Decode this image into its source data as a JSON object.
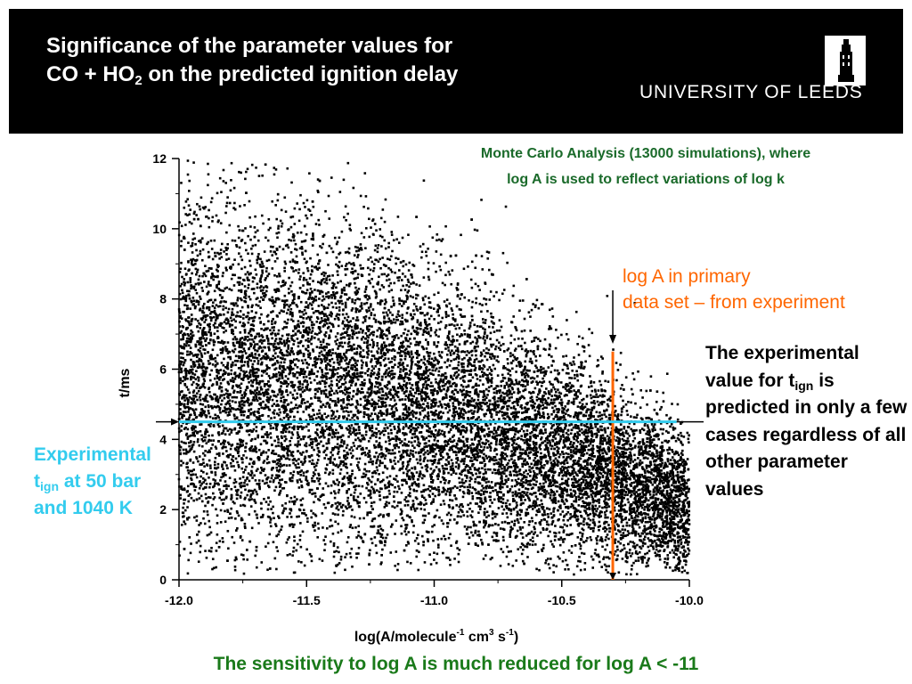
{
  "slide": {
    "title_line1": "Significance of the parameter values for",
    "title_line2_main": "CO + HO",
    "title_line2_sub": "2",
    "title_line2_rest": " on the predicted ignition delay",
    "logo_text": "UNIVERSITY OF LEEDS",
    "mc_note_line1": "Monte Carlo Analysis (13000 simulations), where",
    "mc_note_line2": "log A is used to reflect variations of log k",
    "log_a_note_line1": "log A in primary",
    "log_a_note_line2": "data set – from experiment",
    "exp_note_a": "The experimental value for t",
    "exp_note_sub": "ign",
    "exp_note_b": " is predicted in only a few cases regardless of all other parameter values",
    "exp_label_line1": "Experimental",
    "exp_label_t": "t",
    "exp_label_sub": "ign",
    "exp_label_rest": " at 50 bar",
    "exp_label_line3": "and 1040 K",
    "sensitivity_note": "The sensitivity to log A is much reduced for log A < -11"
  },
  "colors": {
    "header_bg": "#000000",
    "mc_note": "#1a6a2a",
    "log_a_line": "#ff6600",
    "experimental_line": "#33ccee",
    "sensitivity_note": "#1a7a1a",
    "points": "#000000"
  },
  "chart_data": {
    "type": "scatter",
    "n_points_shown": 13000,
    "x_ticks": [
      "-12.0",
      "-11.5",
      "-11.0",
      "-10.5",
      "-10.0"
    ],
    "y_ticks": [
      "0",
      "2",
      "4",
      "6",
      "8",
      "10",
      "12"
    ],
    "xlim": [
      -12.0,
      -10.0
    ],
    "ylim": [
      0,
      12
    ],
    "xlabel": "log(A/molecule-1 cm3 s-1)",
    "ylabel": "t/ms",
    "grid": false,
    "reference_lines": [
      {
        "orientation": "vertical",
        "x": -10.3,
        "color": "#ff6600",
        "meaning": "log A in primary data set"
      },
      {
        "orientation": "horizontal",
        "y": 4.5,
        "color": "#33ccee",
        "meaning": "experimental t_ign"
      }
    ],
    "trend": [
      {
        "x": -12.0,
        "y_mean": 5.8,
        "y_sd": 2.6
      },
      {
        "x": -11.5,
        "y_mean": 5.6,
        "y_sd": 2.5
      },
      {
        "x": -11.0,
        "y_mean": 4.8,
        "y_sd": 2.0
      },
      {
        "x": -10.5,
        "y_mean": 3.6,
        "y_sd": 1.5
      },
      {
        "x": -10.0,
        "y_mean": 2.0,
        "y_sd": 1.0
      }
    ]
  }
}
